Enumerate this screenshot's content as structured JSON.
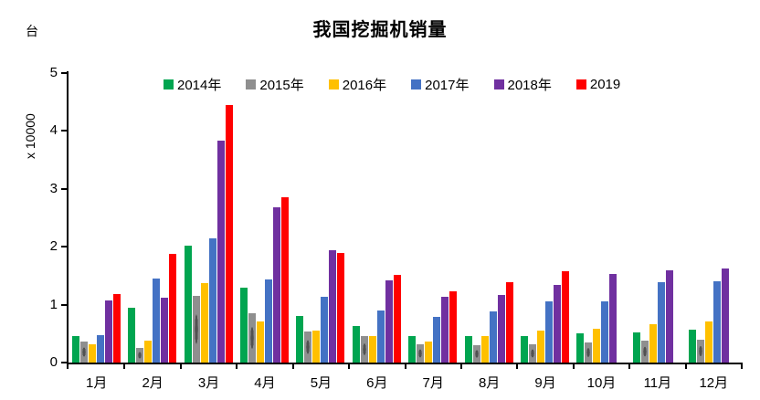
{
  "chart_data": {
    "type": "bar",
    "title": "我国挖掘机销量",
    "unit": "台",
    "ylabel": "x 10000",
    "xlabel": "",
    "ylim": [
      0,
      5
    ],
    "yticks": [
      0,
      1,
      2,
      3,
      4,
      5
    ],
    "grid": false,
    "legend_position": "top-inside",
    "categories": [
      "1月",
      "2月",
      "3月",
      "4月",
      "5月",
      "6月",
      "7月",
      "8月",
      "9月",
      "10月",
      "11月",
      "12月"
    ],
    "series": [
      {
        "name": "2014年",
        "color": "#00A550",
        "pattern": false,
        "values": [
          0.46,
          0.95,
          2.02,
          1.3,
          0.81,
          0.63,
          0.46,
          0.45,
          0.46,
          0.5,
          0.52,
          0.57
        ]
      },
      {
        "name": "2015年",
        "color": "#8F8F8F",
        "pattern": true,
        "values": [
          0.37,
          0.26,
          1.15,
          0.85,
          0.54,
          0.46,
          0.31,
          0.3,
          0.31,
          0.34,
          0.38,
          0.39
        ]
      },
      {
        "name": "2016年",
        "color": "#FFC000",
        "pattern": false,
        "values": [
          0.31,
          0.38,
          1.37,
          0.71,
          0.56,
          0.45,
          0.37,
          0.45,
          0.55,
          0.59,
          0.67,
          0.71
        ]
      },
      {
        "name": "2017年",
        "color": "#4472C4",
        "pattern": false,
        "values": [
          0.47,
          1.45,
          2.15,
          1.44,
          1.14,
          0.9,
          0.79,
          0.88,
          1.06,
          1.06,
          1.39,
          1.4
        ]
      },
      {
        "name": "2018年",
        "color": "#7030A0",
        "pattern": false,
        "values": [
          1.07,
          1.12,
          3.83,
          2.68,
          1.94,
          1.42,
          1.13,
          1.17,
          1.34,
          1.53,
          1.6,
          1.62
        ]
      },
      {
        "name": "2019",
        "color": "#FF0000",
        "pattern": false,
        "values": [
          1.18,
          1.87,
          4.45,
          2.86,
          1.89,
          1.52,
          1.23,
          1.39,
          1.58,
          null,
          null,
          null
        ]
      }
    ]
  }
}
